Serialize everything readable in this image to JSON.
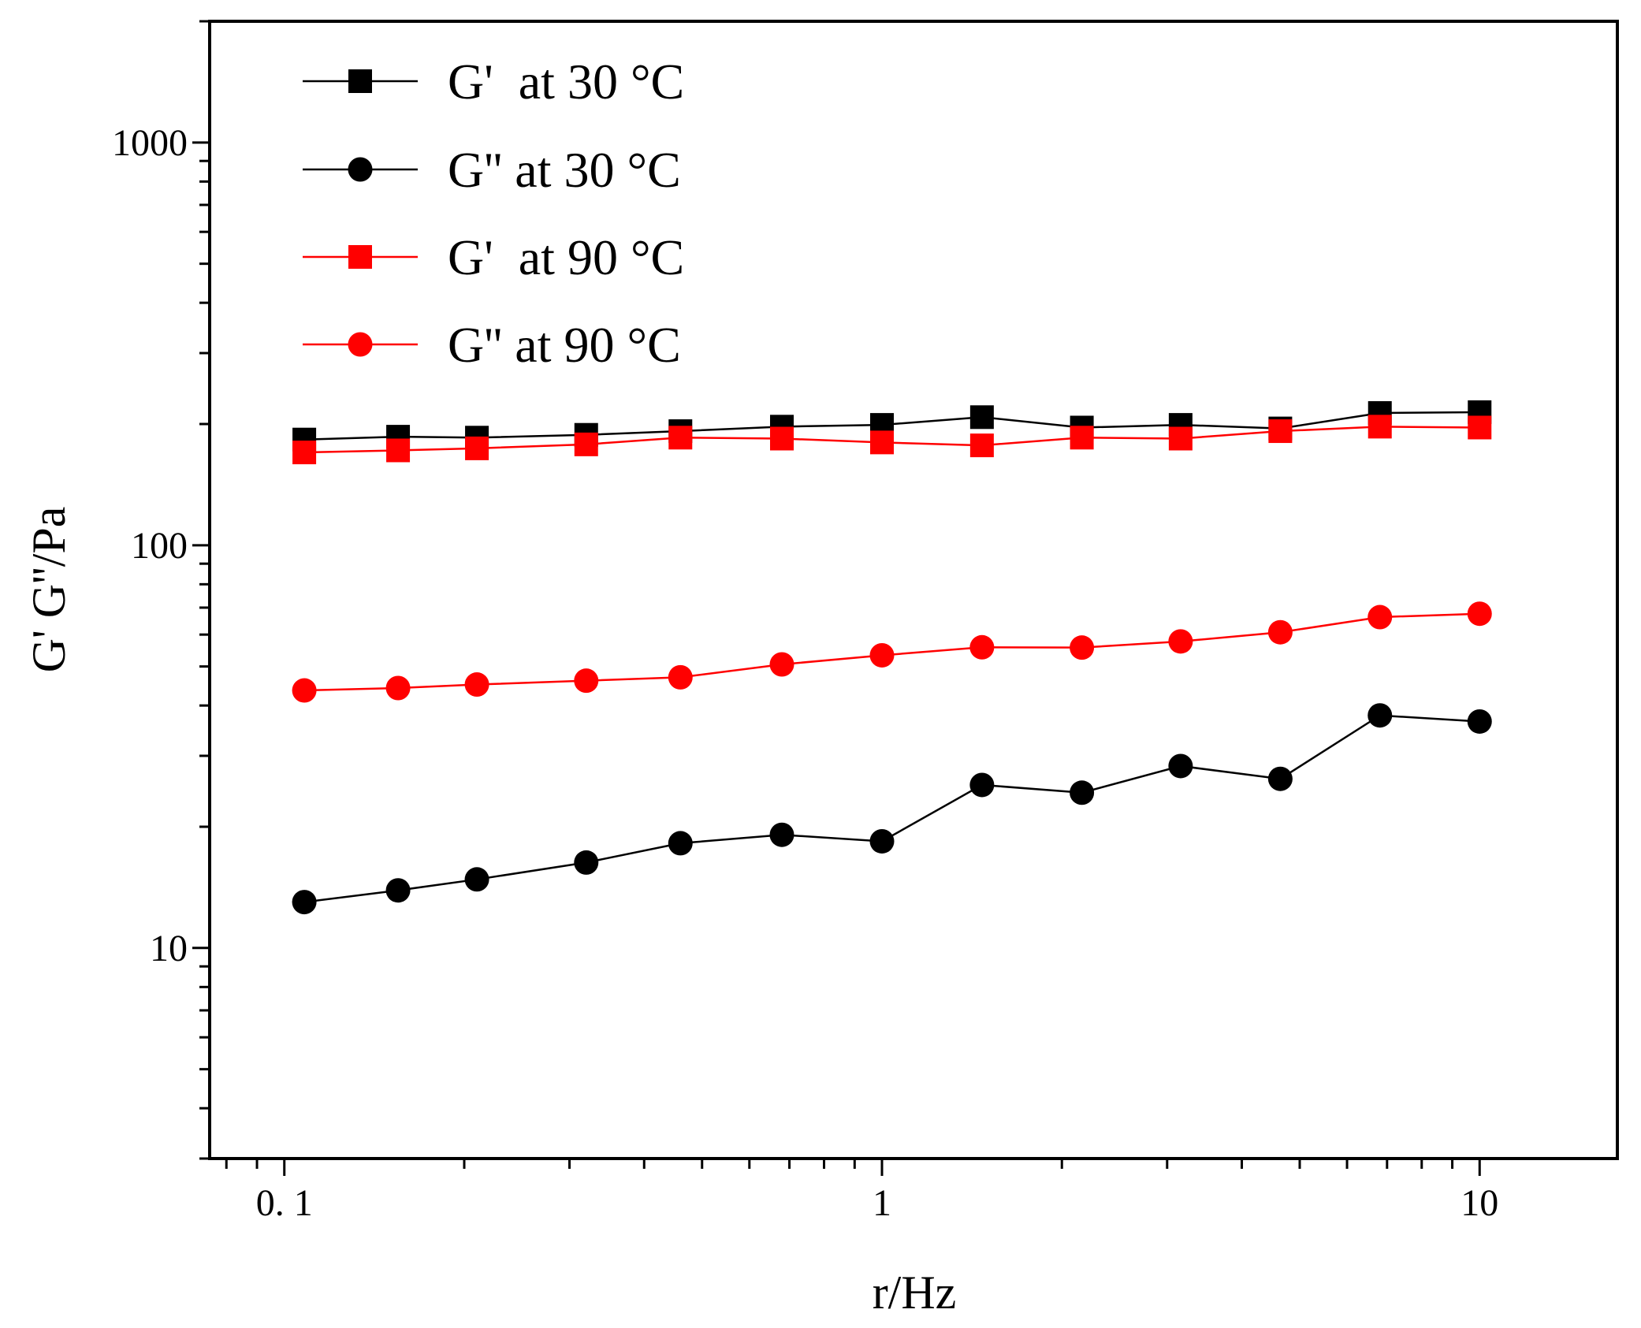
{
  "chart_data": {
    "type": "line",
    "xscale": "log",
    "yscale": "log",
    "xlabel": "r/Hz",
    "ylabel": "G' G''/Pa",
    "xlim": [
      0.075,
      17
    ],
    "ylim": [
      3.0,
      2000
    ],
    "x_ticks": [
      {
        "value": 0.1,
        "label": "0. 1"
      },
      {
        "value": 1,
        "label": "1"
      },
      {
        "value": 10,
        "label": "10"
      }
    ],
    "y_ticks": [
      {
        "value": 10,
        "label": "10"
      },
      {
        "value": 100,
        "label": "100"
      },
      {
        "value": 1000,
        "label": "1000"
      }
    ],
    "x": [
      0.108,
      0.155,
      0.21,
      0.32,
      0.46,
      0.68,
      1.0,
      1.47,
      2.16,
      3.16,
      4.64,
      6.81,
      10.0
    ],
    "series": [
      {
        "name": "G'  at 30 °C",
        "marker": "square",
        "color": "#000000",
        "values": [
          183,
          186,
          185,
          188,
          192,
          197,
          199,
          208,
          196,
          199,
          195,
          213,
          214
        ]
      },
      {
        "name": "G'' at 30 °C",
        "marker": "circle",
        "color": "#000000",
        "values": [
          13.0,
          13.9,
          14.8,
          16.3,
          18.2,
          19.1,
          18.4,
          25.4,
          24.3,
          28.3,
          26.3,
          37.8,
          36.5
        ]
      },
      {
        "name": "G'  at 90 °C",
        "marker": "square",
        "color": "#ff0000",
        "values": [
          170,
          172,
          174,
          178,
          185,
          184,
          180,
          177,
          185,
          184,
          192,
          197,
          196
        ]
      },
      {
        "name": "G'' at 90 °C",
        "marker": "circle",
        "color": "#ff0000",
        "values": [
          43.6,
          44.2,
          45.1,
          46.1,
          47.0,
          50.6,
          53.3,
          55.8,
          55.7,
          57.7,
          60.8,
          66.3,
          67.6
        ]
      }
    ]
  }
}
